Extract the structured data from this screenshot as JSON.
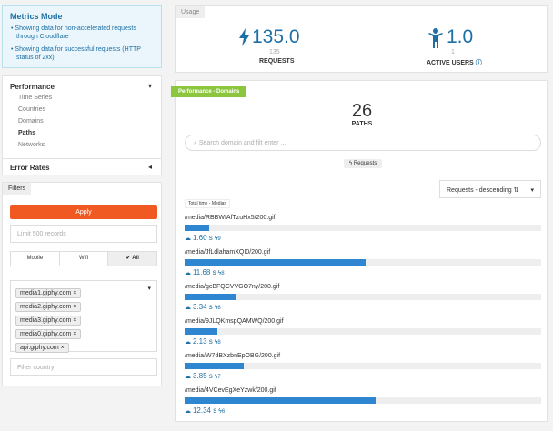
{
  "sidebar": {
    "metrics_mode": {
      "title": "Metrics Mode",
      "bullets": [
        "Showing data for non-accelerated requests through Cloudflare",
        "Showing data for successful requests (HTTP status of 2xx)"
      ]
    },
    "performance": {
      "title": "Performance",
      "items": [
        "Time Series",
        "Countries",
        "Domains",
        "Paths",
        "Networks"
      ]
    },
    "error_rates": "Error Rates",
    "filters": {
      "tab": "Filters",
      "apply": "Apply",
      "limit": "Limit 500 records",
      "segments": [
        "Mobile",
        "Wifi",
        "All"
      ],
      "tags": [
        "media1.giphy.com",
        "media2.giphy.com",
        "media3.giphy.com",
        "media0.giphy.com",
        "api.giphy.com"
      ],
      "country": "Filter country"
    }
  },
  "usage": {
    "tab": "Usage",
    "requests": {
      "value": "135.0",
      "sub": "135",
      "label": "REQUESTS"
    },
    "users": {
      "value": "1.0",
      "sub": "1",
      "label": "ACTIVE USERS"
    }
  },
  "domains": {
    "ribbon": "Performance - Domains",
    "count": "26",
    "count_label": "PATHS",
    "search": "Search domain and filt enter ...",
    "pill": "Requests",
    "sort": "Requests - descending",
    "metric": "Total time - Median",
    "rows": [
      {
        "path": "/media/RBBWIAfTzuHx5/200.gif",
        "time": 1.6,
        "time_label": "1.60 s",
        "count": "9"
      },
      {
        "path": "/media/JfLdlahamXQI0/200.gif",
        "time": 11.68,
        "time_label": "11.68 s",
        "count": "8"
      },
      {
        "path": "/media/gcBFQCVVGO7ny/200.gif",
        "time": 3.34,
        "time_label": "3.34 s",
        "count": "8"
      },
      {
        "path": "/media/9JLQKmspQAMWQ/200.gif",
        "time": 2.13,
        "time_label": "2.13 s",
        "count": "8"
      },
      {
        "path": "/media/W7dBXzbnEpOBG/200.gif",
        "time": 3.85,
        "time_label": "3.85 s",
        "count": "7"
      },
      {
        "path": "/media/4VCevEgXeYzwk/200.gif",
        "time": 12.34,
        "time_label": "12.34 s",
        "count": "6"
      }
    ]
  }
}
